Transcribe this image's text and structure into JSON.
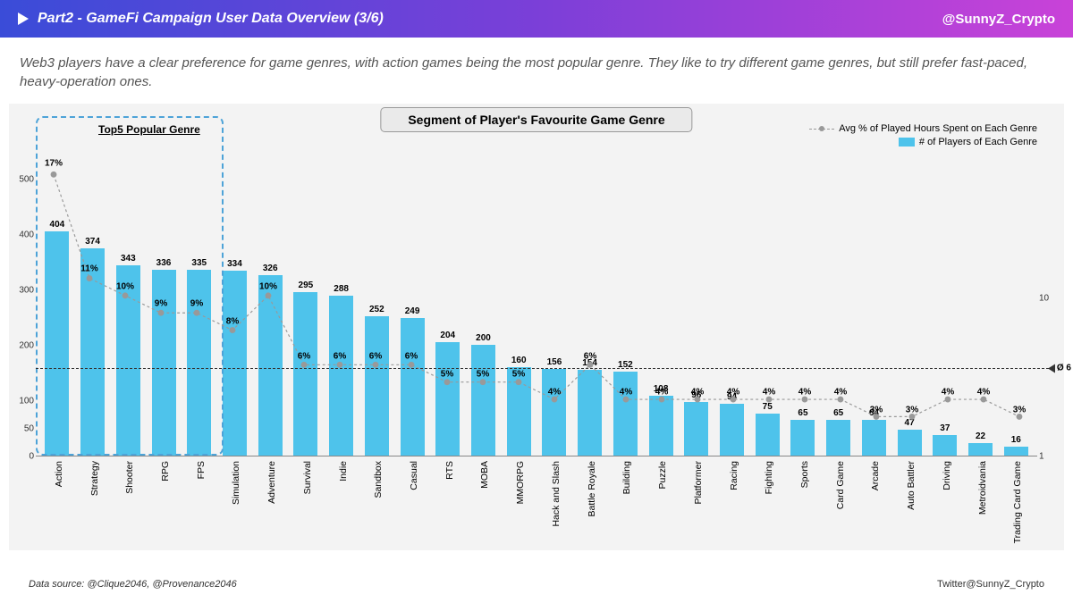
{
  "header": {
    "title": "Part2 - GameFi Campaign User Data Overview (3/6)",
    "handle": "@SunnyZ_Crypto"
  },
  "subtitle": "Web3 players have a clear preference for game genres, with action games being the most popular genre. They like to try different game genres, but still prefer fast-paced, heavy-operation ones.",
  "chart": {
    "title": "Segment of Player's Favourite Game Genre",
    "top5_label": "Top5 Popular Genre",
    "legend_line": "Avg % of Played Hours Spent on Each Genre",
    "legend_bar": "# of Players of Each Genre",
    "bar_color": "#4ec3eb",
    "line_color": "#999999",
    "ref_value": 6,
    "ref_label": "Ø 6",
    "y_max": 540,
    "y_ticks": [
      0,
      50,
      100,
      200,
      300,
      400,
      500
    ],
    "y2_min": 1,
    "y2_max": 18,
    "y2_ticks": [
      1,
      10
    ],
    "categories": [
      "Action",
      "Strategy",
      "Shooter",
      "RPG",
      "FPS",
      "Simulation",
      "Adventure",
      "Survival",
      "Indie",
      "Sandbox",
      "Casual",
      "RTS",
      "MOBA",
      "MMORPG",
      "Hack and Slash",
      "Battle Royale",
      "Building",
      "Puzzle",
      "Platformer",
      "Racing",
      "Fighting",
      "Sports",
      "Card Game",
      "Arcade",
      "Auto Battler",
      "Driving",
      "Metroidvania",
      "Trading Card Game"
    ],
    "bar_values": [
      404,
      374,
      343,
      336,
      335,
      334,
      326,
      295,
      288,
      252,
      249,
      204,
      200,
      160,
      156,
      154,
      152,
      108,
      96,
      94,
      75,
      65,
      65,
      64,
      47,
      37,
      22,
      16
    ],
    "pct_values": [
      17,
      11,
      10,
      9,
      9,
      8,
      10,
      6,
      6,
      6,
      6,
      5,
      5,
      5,
      4,
      6,
      4,
      4,
      4,
      4,
      4,
      4,
      4,
      3,
      3,
      4,
      4,
      3
    ]
  },
  "footer": {
    "source": "Data source: @Clique2046, @Provenance2046",
    "twitter": "Twitter@SunnyZ_Crypto"
  }
}
